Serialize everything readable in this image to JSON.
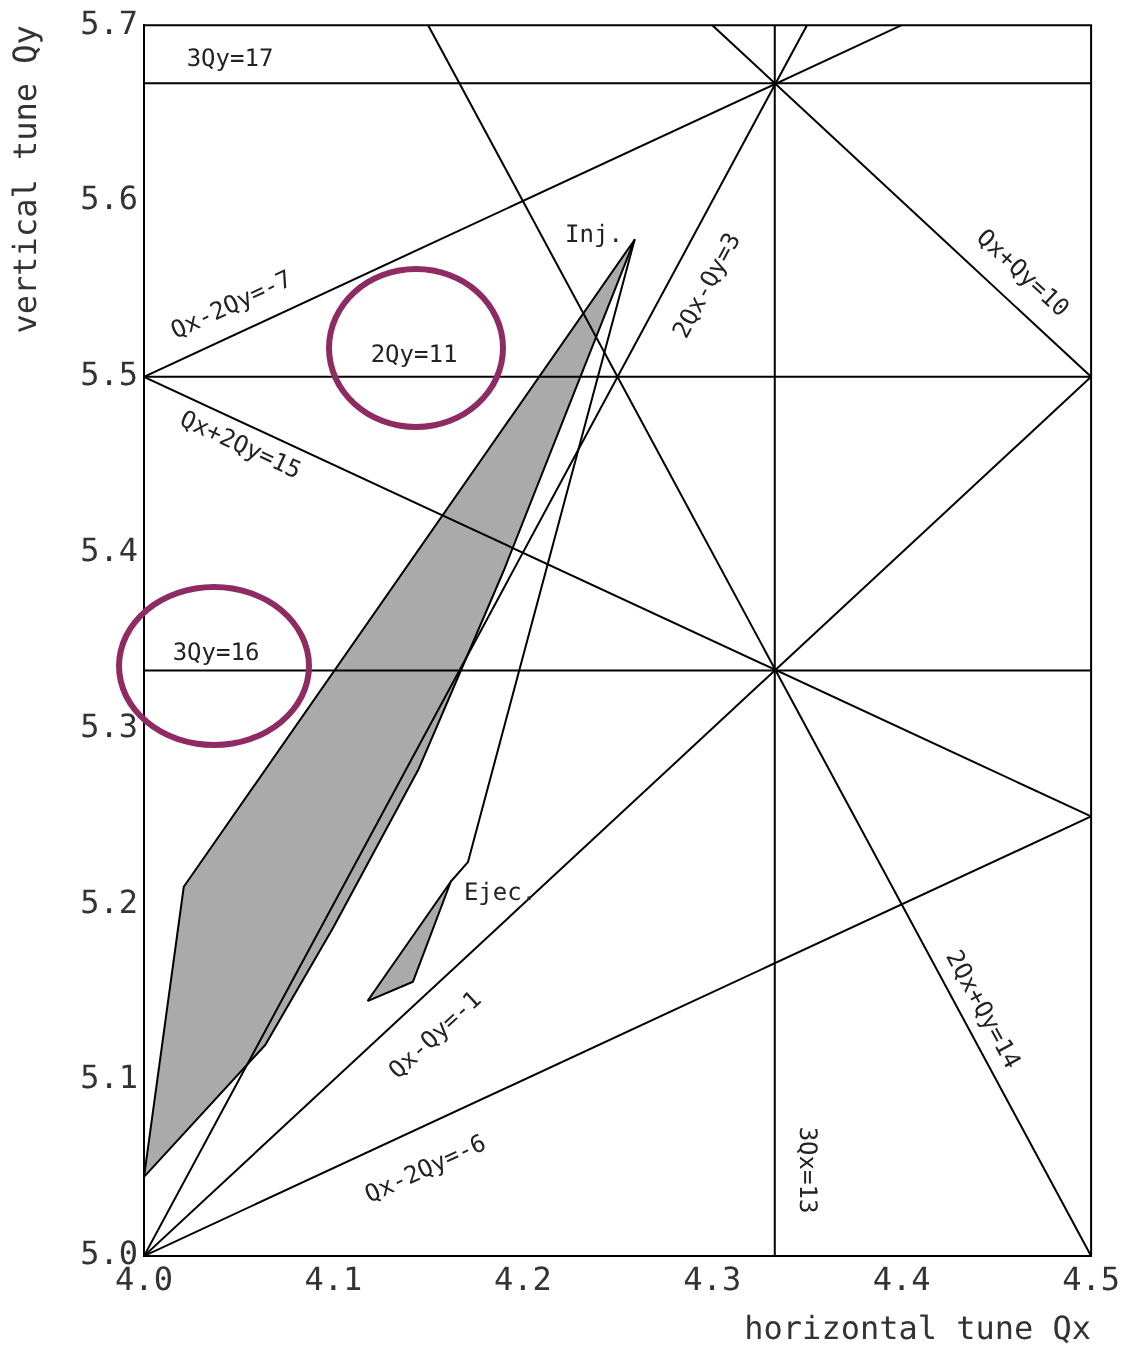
{
  "chart_data": {
    "type": "line",
    "xlabel": "horizontal tune Qx",
    "ylabel": "vertical tune Qy",
    "xlim": [
      4.0,
      4.5
    ],
    "ylim": [
      5.0,
      5.7
    ],
    "xticks": [
      {
        "value": 4.0,
        "label": "4.0"
      },
      4.1,
      4.2,
      4.3,
      4.4,
      4.5
    ],
    "yticks": [
      {
        "value": 5.0,
        "label": "5.0"
      },
      5.1,
      5.2,
      5.3,
      5.4,
      5.5,
      5.6,
      5.7
    ],
    "grid": false,
    "legend": false,
    "marker": "none",
    "series": [
      {
        "color": "#000000",
        "x": [
          4.0,
          4.5
        ],
        "values": [
          5.667,
          5.667
        ]
      },
      {
        "color": "#000000",
        "x": [
          4.0,
          4.5
        ],
        "values": [
          5.5,
          5.5
        ]
      },
      {
        "color": "#000000",
        "x": [
          4.0,
          4.5
        ],
        "values": [
          5.333,
          5.333
        ]
      },
      {
        "color": "#000000",
        "x": [
          4.333,
          4.333
        ],
        "values": [
          5.0,
          5.7
        ]
      },
      {
        "color": "#000000",
        "x": [
          4.0,
          4.4
        ],
        "values": [
          5.5,
          5.7
        ]
      },
      {
        "color": "#000000",
        "x": [
          4.0,
          4.5
        ],
        "values": [
          5.5,
          5.25
        ]
      },
      {
        "color": "#000000",
        "x": [
          4.0,
          4.5
        ],
        "values": [
          5.0,
          5.25
        ]
      },
      {
        "color": "#000000",
        "x": [
          4.0,
          4.5
        ],
        "values": [
          5.0,
          5.5
        ]
      },
      {
        "color": "#000000",
        "x": [
          4.0,
          4.35
        ],
        "values": [
          5.0,
          5.7
        ]
      },
      {
        "color": "#000000",
        "x": [
          4.3,
          4.5
        ],
        "values": [
          5.7,
          5.5
        ]
      },
      {
        "color": "#000000",
        "x": [
          4.15,
          4.5
        ],
        "values": [
          5.7,
          5.0
        ]
      },
      {
        "type": "area",
        "color": "#000000",
        "x": [
          4.0,
          4.021,
          4.259,
          4.19,
          4.145,
          4.1,
          4.064,
          4.0
        ],
        "values": [
          5.045,
          5.21,
          5.578,
          5.39,
          5.277,
          5.187,
          5.12,
          5.045
        ]
      },
      {
        "color": "#000000",
        "x": [
          4.259,
          4.171,
          4.162
        ],
        "values": [
          5.578,
          5.224,
          5.213
        ]
      },
      {
        "type": "area",
        "color": "#000000",
        "x": [
          4.118,
          4.162,
          4.142,
          4.118
        ],
        "values": [
          5.145,
          5.213,
          5.156,
          5.145
        ]
      }
    ],
    "annotations": [
      "3Qy=17",
      "Qx-2Qy=-7",
      "2Qy=11",
      "Qx+2Qy=15",
      "3Qy=16",
      "Inj.",
      "2Qx-Qy=3",
      "Qx+Qy=10",
      "Ejec.",
      "Qx-Qy=-1",
      "Qx-2Qy=-6",
      "3Qx=13",
      "2Qx+Qy=14"
    ]
  }
}
